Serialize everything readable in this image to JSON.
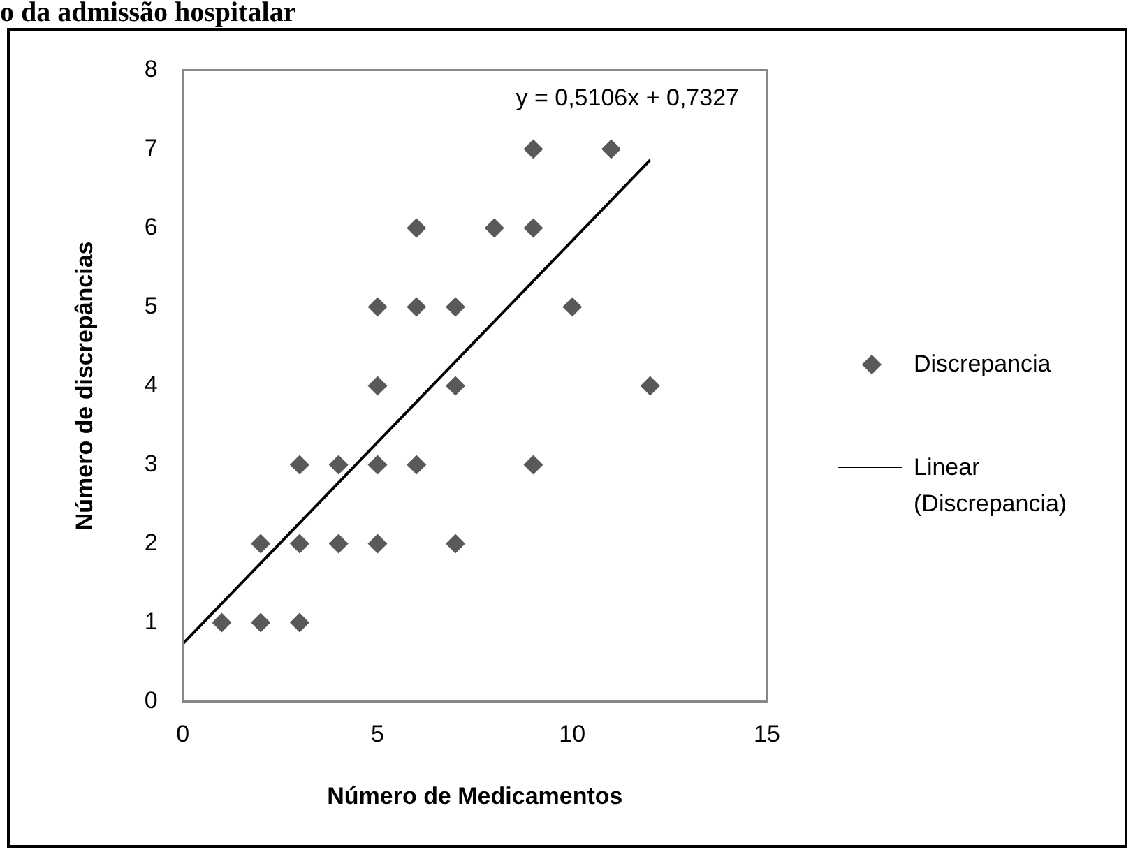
{
  "chart_data": {
    "type": "scatter",
    "title": "o da admissão hospitalar",
    "xlabel": "Número de Medicamentos",
    "ylabel": "Número de discrepâncias",
    "xlim": [
      0,
      15
    ],
    "xticks": [
      0,
      5,
      10,
      15
    ],
    "ylim": [
      0,
      8
    ],
    "yticks": [
      0,
      1,
      2,
      3,
      4,
      5,
      6,
      7,
      8
    ],
    "grid": false,
    "legend": "right",
    "marker": "diamond",
    "annotations": [
      "y = 0,5106x + 0,7327"
    ],
    "series": [
      {
        "name": "Discrepancia",
        "color": "#595959",
        "x": [
          1,
          2,
          3,
          2,
          3,
          4,
          5,
          7,
          3,
          4,
          5,
          6,
          9,
          5,
          7,
          12,
          5,
          6,
          7,
          10,
          6,
          8,
          9,
          9,
          11
        ],
        "values": [
          1,
          1,
          1,
          2,
          2,
          2,
          2,
          2,
          3,
          3,
          3,
          3,
          3,
          4,
          4,
          4,
          5,
          5,
          5,
          5,
          6,
          6,
          6,
          7,
          7
        ]
      },
      {
        "name": "Linear (Discrepancia)",
        "type": "line",
        "color": "#000000",
        "marker": "none",
        "line_style": "solid",
        "x": [
          0,
          12
        ],
        "values": [
          0.73,
          6.86
        ]
      }
    ]
  }
}
